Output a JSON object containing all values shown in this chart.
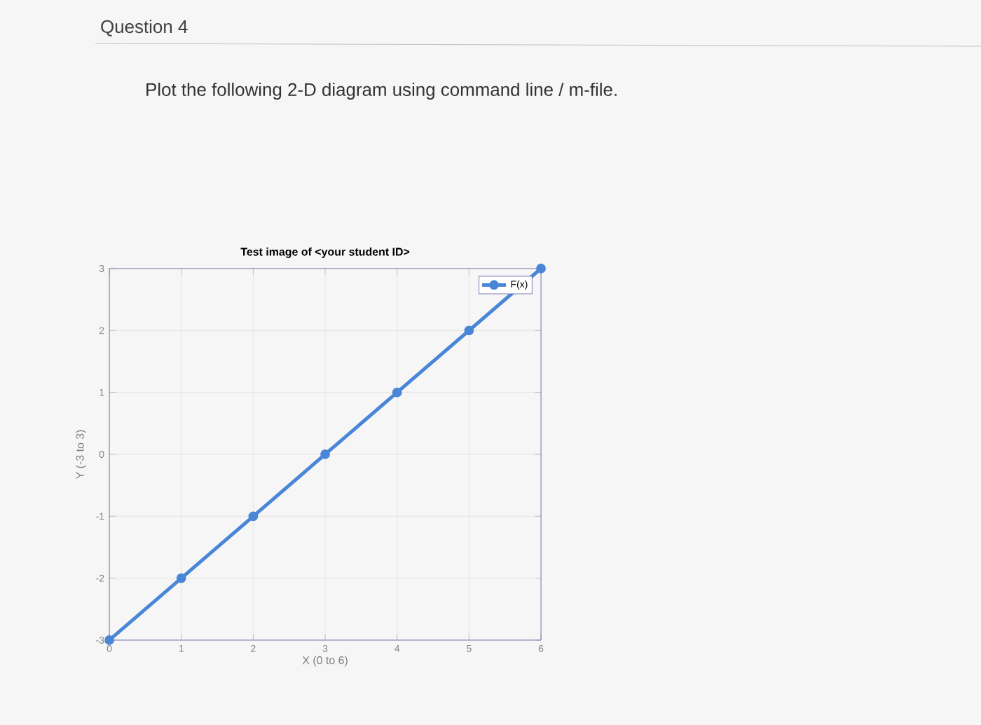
{
  "chart_data": {
    "type": "line",
    "title": "Test image of <your student ID>",
    "xlabel": "X  (0 to 6)",
    "ylabel": "Y  (-3 to 3)",
    "annotations": [
      "Question 4",
      "Plot the following 2-D diagram using command line / m-file."
    ],
    "x": [
      0,
      1,
      2,
      3,
      4,
      5,
      6
    ],
    "series": [
      {
        "name": "F(x)",
        "color": "#4a86d8",
        "values": [
          -3,
          -2,
          -1,
          0,
          1,
          2,
          3
        ]
      }
    ],
    "xlim": [
      0,
      6
    ],
    "ylim": [
      -3,
      3
    ],
    "xticks": [
      0,
      1,
      2,
      3,
      4,
      5,
      6
    ],
    "yticks": [
      -3,
      -2,
      -1,
      0,
      1,
      2,
      3
    ],
    "grid": true,
    "legend": "top right",
    "marker": "circle",
    "line_style": "solid"
  }
}
